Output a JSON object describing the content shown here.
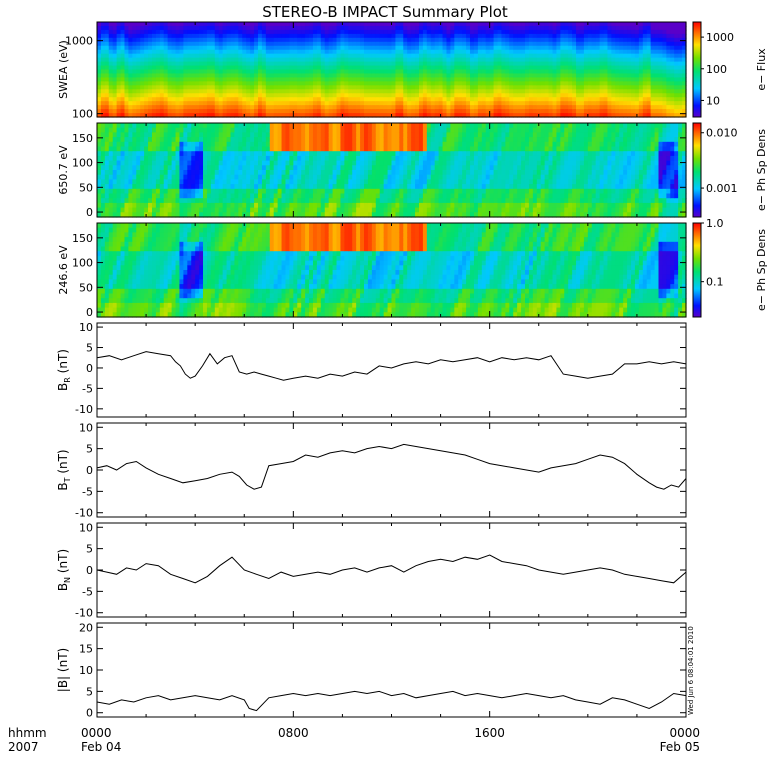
{
  "title": "STEREO-B IMPACT Summary Plot",
  "x_axis": {
    "row1_label": "hhmm",
    "row2_label": "2007",
    "ticks": [
      {
        "time": "0000",
        "date": "Feb 04",
        "hour": 0
      },
      {
        "time": "0800",
        "date": "",
        "hour": 8
      },
      {
        "time": "1600",
        "date": "",
        "hour": 16
      },
      {
        "time": "0000",
        "date": "Feb 05",
        "hour": 24
      }
    ],
    "range_hours": [
      0,
      24
    ]
  },
  "stamp": "Wed Jun  6 08:04:01 2010",
  "colors": {
    "line": "#000000",
    "axis": "#000000"
  },
  "chart_data": [
    {
      "type": "heatmap",
      "ylabel": "SWEA (eV)",
      "yscale": "log",
      "ylim": [
        90,
        1800
      ],
      "yticks": [
        {
          "v": 100,
          "label": "100"
        },
        {
          "v": 1000,
          "label": "1000"
        }
      ],
      "colorbar": {
        "label": "e− Flux",
        "scale": "log",
        "range": [
          3,
          3000
        ],
        "ticks": [
          {
            "v": 10,
            "label": "10"
          },
          {
            "v": 100,
            "label": "100"
          },
          {
            "v": 1000,
            "label": "1000"
          }
        ]
      }
    },
    {
      "type": "heatmap",
      "ylabel": "650.7 eV",
      "ylim": [
        -10,
        180
      ],
      "yticks": [
        {
          "v": 0,
          "label": "0"
        },
        {
          "v": 50,
          "label": "50"
        },
        {
          "v": 100,
          "label": "100"
        },
        {
          "v": 150,
          "label": "150"
        }
      ],
      "colorbar": {
        "label": "e− Ph Sp Dens",
        "scale": "log",
        "range": [
          0.0003,
          0.015
        ],
        "ticks": [
          {
            "v": 0.001,
            "label": "0.001"
          },
          {
            "v": 0.01,
            "label": "0.010"
          }
        ]
      }
    },
    {
      "type": "heatmap",
      "ylabel": "246.6 eV",
      "ylim": [
        -10,
        180
      ],
      "yticks": [
        {
          "v": 0,
          "label": "0"
        },
        {
          "v": 50,
          "label": "50"
        },
        {
          "v": 100,
          "label": "100"
        },
        {
          "v": 150,
          "label": "150"
        }
      ],
      "colorbar": {
        "label": "e− Ph Sp Dens",
        "scale": "log",
        "range": [
          0.025,
          1.0
        ],
        "ticks": [
          {
            "v": 0.1,
            "label": "0.1"
          },
          {
            "v": 1.0,
            "label": "1.0"
          }
        ]
      }
    },
    {
      "type": "line",
      "ylabel_main": "B",
      "ylabel_sub": "R",
      "ylabel_unit": "(nT)",
      "ylim": [
        -12,
        11
      ],
      "yticks": [
        -10,
        -5,
        0,
        5,
        10
      ],
      "x": [
        0,
        0.5,
        1,
        1.5,
        2,
        2.5,
        3,
        3.2,
        3.4,
        3.6,
        3.8,
        4,
        4.3,
        4.6,
        4.9,
        5.2,
        5.5,
        5.8,
        6.1,
        6.4,
        6.7,
        7,
        7.3,
        7.6,
        8,
        8.5,
        9,
        9.5,
        10,
        10.5,
        11,
        11.5,
        12,
        12.5,
        13,
        13.5,
        14,
        14.5,
        15,
        15.5,
        16,
        16.5,
        17,
        17.5,
        18,
        18.5,
        19,
        19.5,
        20,
        20.5,
        21,
        21.5,
        22,
        22.5,
        23,
        23.5,
        24
      ],
      "values": [
        2.5,
        3,
        2,
        3,
        4,
        3.5,
        3,
        1.5,
        0.5,
        -1.5,
        -2.5,
        -2,
        0.5,
        3.5,
        1,
        2.5,
        3,
        -1,
        -1.5,
        -1,
        -1.5,
        -2,
        -2.5,
        -3,
        -2.5,
        -2,
        -2.5,
        -1.5,
        -2,
        -1,
        -1.5,
        0.5,
        0,
        1,
        1.5,
        1,
        2,
        1.5,
        2,
        2.5,
        1.5,
        2.5,
        2,
        2.5,
        2,
        3,
        -1.5,
        -2,
        -2.5,
        -2,
        -1.5,
        1,
        1,
        1.5,
        1,
        1.5,
        1
      ]
    },
    {
      "type": "line",
      "ylabel_main": "B",
      "ylabel_sub": "T",
      "ylabel_unit": "(nT)",
      "ylim": [
        -11,
        11
      ],
      "yticks": [
        -10,
        -5,
        0,
        5,
        10
      ],
      "x": [
        0,
        0.4,
        0.8,
        1.2,
        1.6,
        2,
        2.5,
        3,
        3.5,
        4,
        4.5,
        5,
        5.5,
        5.8,
        6.1,
        6.4,
        6.7,
        7,
        7.5,
        8,
        8.5,
        9,
        9.5,
        10,
        10.5,
        11,
        11.5,
        12,
        12.5,
        13,
        13.5,
        14,
        14.5,
        15,
        15.5,
        16,
        16.5,
        17,
        17.5,
        18,
        18.5,
        19,
        19.5,
        20,
        20.5,
        21,
        21.5,
        22,
        22.5,
        22.8,
        23.1,
        23.4,
        23.7,
        24
      ],
      "values": [
        0.5,
        1,
        0,
        1.5,
        2,
        0.5,
        -1,
        -2,
        -3,
        -2.5,
        -2,
        -1,
        -0.5,
        -1.5,
        -3.5,
        -4.5,
        -4,
        1,
        1.5,
        2,
        3.5,
        3,
        4,
        4.5,
        4,
        5,
        5.5,
        5,
        6,
        5.5,
        5,
        4.5,
        4,
        3.5,
        2.5,
        1.5,
        1,
        0.5,
        0,
        -0.5,
        0.5,
        1,
        1.5,
        2.5,
        3.5,
        3,
        1.5,
        -1,
        -3,
        -4,
        -4.5,
        -3.5,
        -4,
        -2
      ]
    },
    {
      "type": "line",
      "ylabel_main": "B",
      "ylabel_sub": "N",
      "ylabel_unit": "(nT)",
      "ylim": [
        -11,
        11
      ],
      "yticks": [
        -10,
        -5,
        0,
        5,
        10
      ],
      "x": [
        0,
        0.4,
        0.8,
        1.2,
        1.6,
        2,
        2.5,
        3,
        3.5,
        4,
        4.5,
        5,
        5.5,
        6,
        6.5,
        7,
        7.5,
        8,
        8.5,
        9,
        9.5,
        10,
        10.5,
        11,
        11.5,
        12,
        12.5,
        13,
        13.5,
        14,
        14.5,
        15,
        15.5,
        16,
        16.5,
        17,
        17.5,
        18,
        18.5,
        19,
        19.5,
        20,
        20.5,
        21,
        21.5,
        22,
        22.5,
        23,
        23.5,
        24
      ],
      "values": [
        0,
        -0.5,
        -1,
        0.5,
        0,
        1.5,
        1,
        -1,
        -2,
        -3,
        -1.5,
        1,
        3,
        0,
        -1,
        -2,
        -0.5,
        -1.5,
        -1,
        -0.5,
        -1,
        0,
        0.5,
        -0.5,
        0.5,
        1,
        -0.5,
        1,
        2,
        2.5,
        2,
        3,
        2.5,
        3.5,
        2,
        1.5,
        1,
        0,
        -0.5,
        -1,
        -0.5,
        0,
        0.5,
        0,
        -1,
        -1.5,
        -2,
        -2.5,
        -3,
        -0.5
      ]
    },
    {
      "type": "line",
      "ylabel_main": "|B|",
      "ylabel_sub": "",
      "ylabel_unit": "(nT)",
      "ylim": [
        -1,
        21
      ],
      "yticks": [
        0,
        5,
        10,
        15,
        20
      ],
      "x": [
        0,
        0.5,
        1,
        1.5,
        2,
        2.5,
        3,
        3.5,
        4,
        4.5,
        5,
        5.5,
        6,
        6.2,
        6.5,
        7,
        7.5,
        8,
        8.5,
        9,
        9.5,
        10,
        10.5,
        11,
        11.5,
        12,
        12.5,
        13,
        13.5,
        14,
        14.5,
        15,
        15.5,
        16,
        16.5,
        17,
        17.5,
        18,
        18.5,
        19,
        19.5,
        20,
        20.5,
        21,
        21.5,
        22,
        22.5,
        23,
        23.5,
        24
      ],
      "values": [
        2.5,
        2,
        3,
        2.5,
        3.5,
        4,
        3,
        3.5,
        4,
        3.5,
        3,
        4,
        3,
        1,
        0.5,
        3.5,
        4,
        4.5,
        4,
        4.5,
        4,
        4.5,
        5,
        4.5,
        5,
        4,
        4.5,
        3.5,
        4,
        4.5,
        5,
        4,
        4.5,
        4,
        3.5,
        4,
        4.5,
        4,
        3.5,
        4,
        3,
        2.5,
        2,
        3.5,
        3,
        2,
        1,
        2.5,
        4.5,
        4
      ]
    }
  ]
}
